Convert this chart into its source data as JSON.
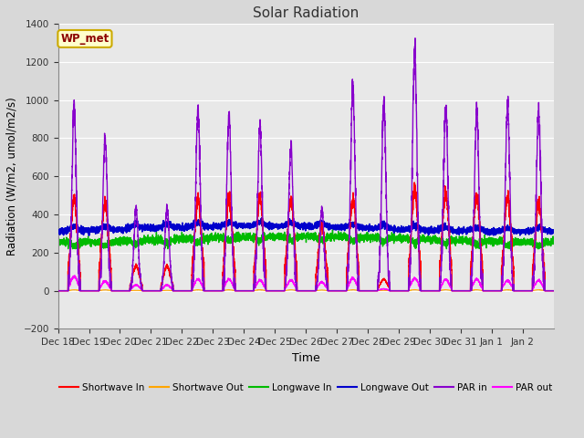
{
  "title": "Solar Radiation",
  "ylabel": "Radiation (W/m2, umol/m2/s)",
  "xlabel": "Time",
  "ylim": [
    -200,
    1400
  ],
  "yticks": [
    -200,
    0,
    200,
    400,
    600,
    800,
    1000,
    1200,
    1400
  ],
  "x_tick_labels": [
    "Dec 18",
    "Dec 19",
    "Dec 20",
    "Dec 21",
    "Dec 22",
    "Dec 23",
    "Dec 24",
    "Dec 25",
    "Dec 26",
    "Dec 27",
    "Dec 28",
    "Dec 29",
    "Dec 30",
    "Dec 31",
    "Jan 1",
    "Jan 2"
  ],
  "station_label": "WP_met",
  "fig_bg_color": "#d8d8d8",
  "plot_bg_color": "#e8e8e8",
  "grid_color": "#ffffff",
  "series": {
    "shortwave_in": {
      "color": "#ff0000",
      "label": "Shortwave In"
    },
    "shortwave_out": {
      "color": "#ffa500",
      "label": "Shortwave Out"
    },
    "longwave_in": {
      "color": "#00bb00",
      "label": "Longwave In"
    },
    "longwave_out": {
      "color": "#0000cc",
      "label": "Longwave Out"
    },
    "par_in": {
      "color": "#8800cc",
      "label": "PAR in"
    },
    "par_out": {
      "color": "#ff00ff",
      "label": "PAR out"
    }
  },
  "num_days": 16,
  "pts_per_day": 288,
  "par_in_peaks": [
    950,
    800,
    430,
    430,
    940,
    930,
    860,
    750,
    430,
    1060,
    980,
    1260,
    960,
    950,
    960,
    940
  ],
  "sw_in_peaks": [
    480,
    460,
    130,
    130,
    480,
    480,
    490,
    480,
    340,
    480,
    60,
    530,
    520,
    500,
    500,
    470
  ],
  "par_out_peaks": [
    75,
    50,
    30,
    30,
    60,
    60,
    55,
    55,
    45,
    65,
    10,
    65,
    60,
    60,
    55,
    55
  ],
  "lw_in_base": 270,
  "lw_out_base": 325,
  "day_start": 0.32,
  "day_end": 0.72
}
